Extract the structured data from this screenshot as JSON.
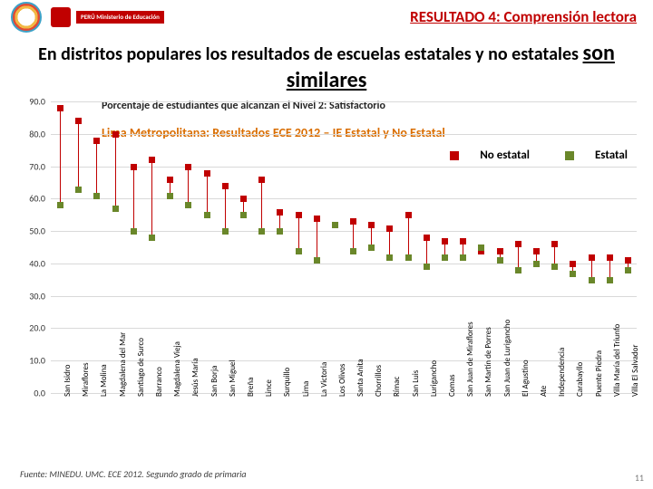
{
  "header": {
    "result_title": "RESULTADO 4: Comprensión lectora",
    "headline_pre": "En distritos populares los resultados de  escuelas estatales y no estatales ",
    "headline_big": "son similares",
    "min_label": "PERÚ  Ministerio\nde Educación"
  },
  "chart": {
    "title": "Porcentaje de estudiantes que alcanzan el Nivel 2: Satisfactorio",
    "subtitle": "Lima Metropolitana: Resultados ECE 2012 – IE Estatal y No Estatal",
    "type": "hilo-scatter",
    "ylim": [
      0,
      90
    ],
    "ytick_step": 10,
    "yticks": [
      "0.0",
      "10.0",
      "20.0",
      "30.0",
      "40.0",
      "50.0",
      "60.0",
      "70.0",
      "80.0",
      "90.0"
    ],
    "colors": {
      "no_estatal": "#c00000",
      "estatal": "#6a872a",
      "grid": "#d9d9d9",
      "bg": "#ffffff",
      "hilo": "#c00000"
    },
    "legend": {
      "no_estatal": "No estatal",
      "estatal": "Estatal"
    },
    "categories": [
      "San Isidro",
      "Miraflores",
      "La Molina",
      "Magdalena del Mar",
      "Santiago de Surco",
      "Barranco",
      "Magdalena Vieja",
      "Jesús María",
      "San Borja",
      "San Miguel",
      "Breña",
      "Lince",
      "Surquillo",
      "Lima",
      "La Victoria",
      "Los Olivos",
      "Santa Anita",
      "Chorrillos",
      "Rímac",
      "San Luis",
      "Lurigancho",
      "Comas",
      "San Juan de Miraflores",
      "San Martín de Porres",
      "San Juan de Lurigancho",
      "El Agustino",
      "Ate",
      "Independencia",
      "Carabayllo",
      "Puente Piedra",
      "Villa María del Triunfo",
      "Villa El Salvador"
    ],
    "no_estatal": [
      88,
      84,
      78,
      80,
      70,
      72,
      66,
      70,
      68,
      64,
      60,
      66,
      56,
      55,
      54,
      52,
      53,
      52,
      51,
      55,
      48,
      47,
      47,
      44,
      44,
      46,
      44,
      46,
      40,
      42,
      42,
      41
    ],
    "estatal": [
      58,
      63,
      61,
      57,
      50,
      48,
      61,
      58,
      55,
      50,
      55,
      50,
      50,
      44,
      41,
      52,
      44,
      45,
      42,
      42,
      39,
      42,
      42,
      45,
      41,
      38,
      40,
      39,
      37,
      35,
      35,
      38
    ]
  },
  "footer": {
    "source": "Fuente: MINEDU. UMC. ECE 2012. Segundo grado de primaria",
    "pagenum": "11"
  }
}
